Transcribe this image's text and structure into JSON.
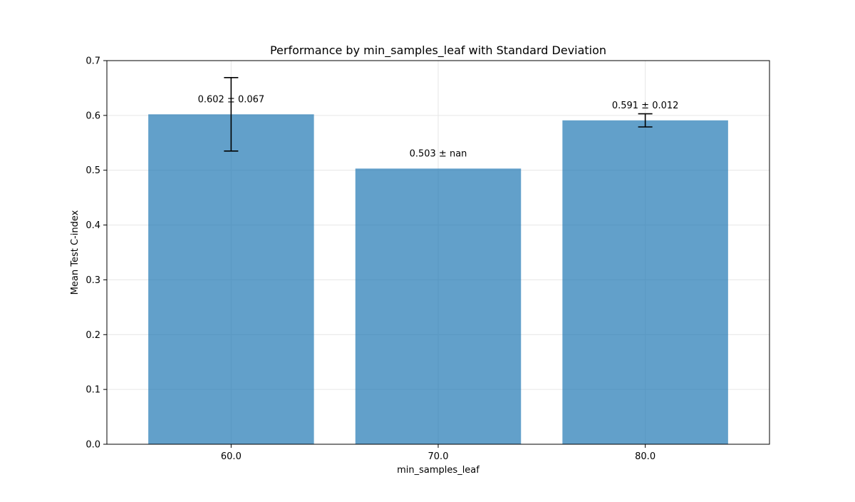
{
  "chart_data": {
    "type": "bar",
    "title": "Performance by min_samples_leaf with Standard Deviation",
    "xlabel": "min_samples_leaf",
    "ylabel": "Mean Test C-index",
    "categories": [
      "60.0",
      "70.0",
      "80.0"
    ],
    "values": [
      0.602,
      0.503,
      0.591
    ],
    "errors": [
      0.067,
      null,
      0.012
    ],
    "bar_labels": [
      "0.602 ± 0.067",
      "0.503 ± nan",
      "0.591 ± 0.012"
    ],
    "ylim": [
      0,
      0.7
    ],
    "yticks": [
      0.0,
      0.1,
      0.2,
      0.3,
      0.4,
      0.5,
      0.6,
      0.7
    ],
    "ytick_labels": [
      "0.0",
      "0.1",
      "0.2",
      "0.3",
      "0.4",
      "0.5",
      "0.6",
      "0.7"
    ],
    "grid": true,
    "bar_color": "#1f77b4"
  }
}
